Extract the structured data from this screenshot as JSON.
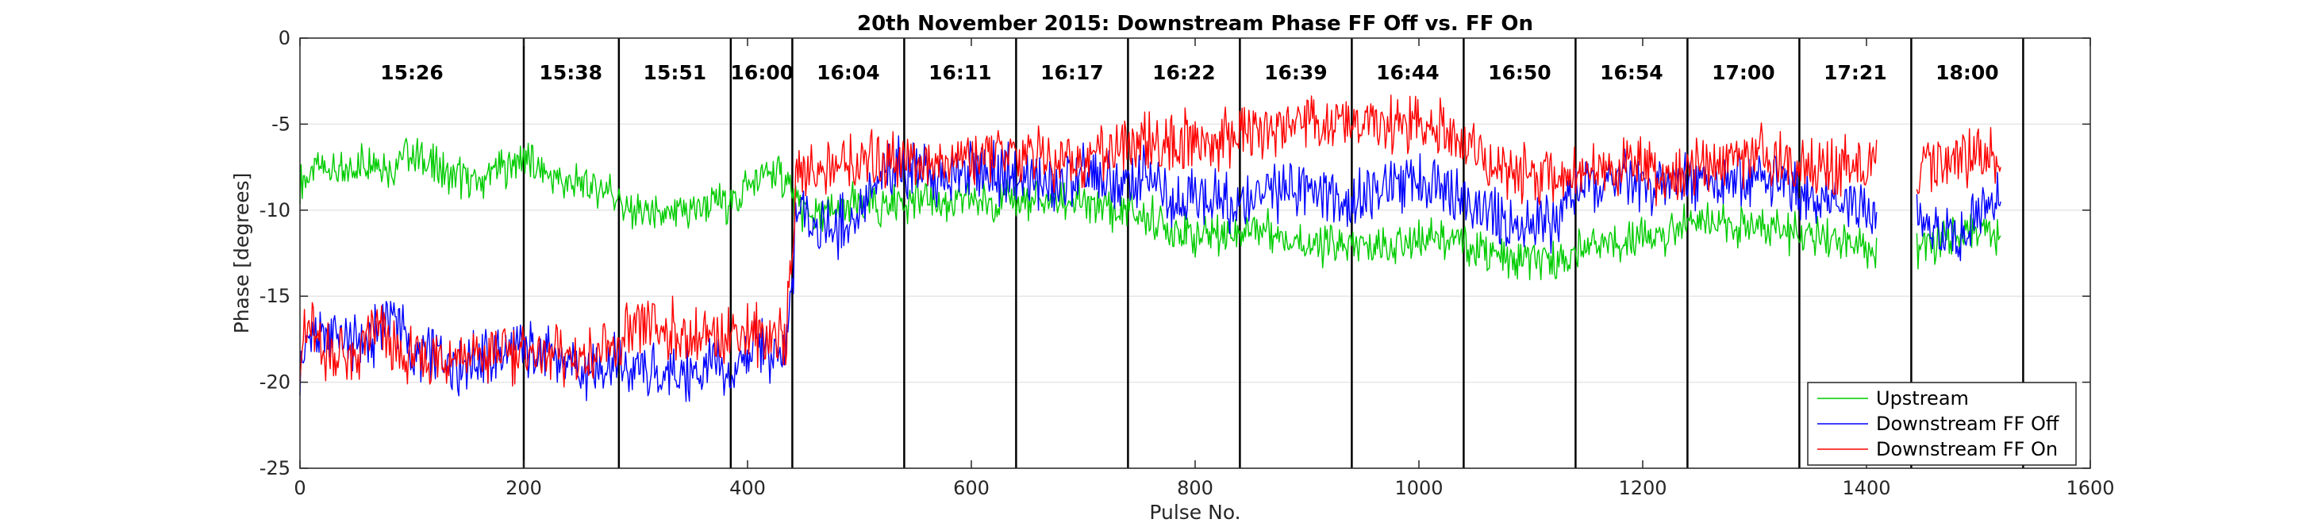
{
  "chart_data": {
    "type": "line",
    "title": "20th November 2015: Downstream Phase FF Off vs. FF On",
    "xlabel": "Pulse No.",
    "ylabel": "Phase [degrees]",
    "xlim": [
      0,
      1600
    ],
    "ylim": [
      -25,
      0
    ],
    "xticks": [
      0,
      200,
      400,
      600,
      800,
      1000,
      1200,
      1400,
      1600
    ],
    "yticks": [
      0,
      -5,
      -10,
      -15,
      -20,
      -25
    ],
    "grid": true,
    "legend_position": "bottom-right",
    "dividers": [
      200,
      285,
      385,
      440,
      540,
      640,
      740,
      840,
      940,
      1040,
      1140,
      1240,
      1340,
      1440,
      1540
    ],
    "segment_labels": [
      {
        "x": 100,
        "label": "15:26"
      },
      {
        "x": 242,
        "label": "15:38"
      },
      {
        "x": 335,
        "label": "15:51"
      },
      {
        "x": 413,
        "label": "16:00"
      },
      {
        "x": 490,
        "label": "16:04"
      },
      {
        "x": 590,
        "label": "16:11"
      },
      {
        "x": 690,
        "label": "16:17"
      },
      {
        "x": 790,
        "label": "16:22"
      },
      {
        "x": 890,
        "label": "16:39"
      },
      {
        "x": 990,
        "label": "16:44"
      },
      {
        "x": 1090,
        "label": "16:50"
      },
      {
        "x": 1190,
        "label": "16:54"
      },
      {
        "x": 1290,
        "label": "17:00"
      },
      {
        "x": 1390,
        "label": "17:21"
      },
      {
        "x": 1490,
        "label": "18:00"
      }
    ],
    "series": [
      {
        "name": "Upstream",
        "color": "#00cc00",
        "x": [
          0,
          20,
          40,
          60,
          80,
          100,
          120,
          140,
          160,
          180,
          200,
          220,
          240,
          260,
          280,
          290,
          310,
          330,
          350,
          370,
          385,
          400,
          420,
          435,
          445,
          460,
          480,
          500,
          520,
          530,
          545,
          560,
          580,
          600,
          620,
          640,
          660,
          680,
          700,
          720,
          740,
          760,
          780,
          800,
          820,
          840,
          860,
          880,
          900,
          920,
          940,
          960,
          980,
          1000,
          1020,
          1040,
          1060,
          1080,
          1100,
          1120,
          1140,
          1160,
          1180,
          1200,
          1220,
          1240,
          1260,
          1280,
          1300,
          1320,
          1340,
          1360,
          1380,
          1390,
          1400,
          1410,
          1445,
          1460,
          1480,
          1500,
          1520
        ],
        "y": [
          -8.5,
          -7.5,
          -8,
          -7,
          -7.5,
          -6.5,
          -7.5,
          -8,
          -8.5,
          -7.5,
          -7,
          -8,
          -8.5,
          -8.5,
          -9,
          -10,
          -10,
          -10.5,
          -10,
          -9.5,
          -9.5,
          -8.5,
          -8,
          -8,
          -10,
          -10.5,
          -10,
          -9.5,
          -10,
          -9.5,
          -9.5,
          -9.5,
          -9.5,
          -9.5,
          -9.5,
          -9.5,
          -9.5,
          -9.5,
          -9.5,
          -10,
          -10,
          -10.5,
          -11,
          -11.5,
          -11.5,
          -11,
          -11,
          -11.5,
          -12,
          -12,
          -12,
          -12,
          -12,
          -11.5,
          -11.5,
          -12,
          -12.5,
          -13,
          -13,
          -13,
          -12.5,
          -12,
          -12,
          -11.5,
          -11.5,
          -10.5,
          -10.5,
          -11,
          -11,
          -11,
          -11.5,
          -11.5,
          -12,
          -12,
          -12.5,
          -12.5,
          -12,
          -12,
          -11.5,
          -11,
          -11.5
        ]
      },
      {
        "name": "Downstream FF Off",
        "color": "#0000ff",
        "x": [
          0,
          10,
          20,
          30,
          40,
          50,
          60,
          70,
          80,
          90,
          100,
          120,
          140,
          160,
          180,
          200,
          220,
          240,
          260,
          280,
          290,
          310,
          330,
          350,
          370,
          385,
          390,
          400,
          410,
          420,
          435,
          445,
          460,
          480,
          500,
          520,
          530,
          545,
          560,
          580,
          600,
          620,
          640,
          660,
          680,
          700,
          720,
          740,
          760,
          780,
          800,
          820,
          840,
          860,
          880,
          900,
          920,
          940,
          960,
          980,
          1000,
          1020,
          1040,
          1060,
          1080,
          1100,
          1120,
          1140,
          1160,
          1180,
          1200,
          1220,
          1240,
          1260,
          1280,
          1300,
          1320,
          1340,
          1360,
          1380,
          1390,
          1400,
          1410,
          1445,
          1460,
          1480,
          1500,
          1520
        ],
        "y": [
          -19.5,
          -17,
          -18,
          -16.5,
          -18,
          -17.5,
          -18,
          -17,
          -16,
          -16.5,
          -18.5,
          -18.5,
          -19,
          -18.5,
          -18.5,
          -18,
          -18.5,
          -19,
          -19,
          -19,
          -19.5,
          -19.5,
          -19.5,
          -19.5,
          -19,
          -20,
          -19,
          -18.5,
          -17.5,
          -18.5,
          -18.5,
          -9.5,
          -10.5,
          -11,
          -10,
          -8,
          -7.5,
          -7.5,
          -8,
          -8.5,
          -7.5,
          -8,
          -8,
          -8.5,
          -8.5,
          -8,
          -8.5,
          -8.5,
          -8,
          -9.5,
          -9,
          -9.5,
          -9.5,
          -9,
          -9,
          -8.5,
          -9,
          -9.5,
          -9,
          -8.5,
          -8.5,
          -8,
          -9.5,
          -10,
          -11,
          -11,
          -10.5,
          -9,
          -8.5,
          -8,
          -8.5,
          -8.5,
          -8,
          -8,
          -8.5,
          -8,
          -8.5,
          -9,
          -9.5,
          -9.5,
          -10,
          -10,
          -10.5,
          -10.5,
          -11.5,
          -11.5,
          -10.5,
          -9.5
        ]
      },
      {
        "name": "Downstream FF On",
        "color": "#ff0000",
        "x": [
          0,
          10,
          20,
          30,
          40,
          50,
          60,
          70,
          80,
          90,
          100,
          120,
          140,
          160,
          180,
          200,
          220,
          240,
          260,
          280,
          290,
          310,
          330,
          350,
          370,
          385,
          400,
          420,
          435,
          445,
          460,
          480,
          500,
          520,
          530,
          545,
          560,
          580,
          600,
          620,
          640,
          660,
          680,
          700,
          720,
          740,
          760,
          780,
          800,
          820,
          840,
          860,
          880,
          900,
          920,
          940,
          960,
          980,
          1000,
          1020,
          1040,
          1060,
          1080,
          1100,
          1120,
          1140,
          1160,
          1180,
          1200,
          1220,
          1240,
          1260,
          1280,
          1300,
          1320,
          1340,
          1360,
          1380,
          1390,
          1400,
          1410,
          1445,
          1460,
          1480,
          1500,
          1520
        ],
        "y": [
          -18,
          -16.5,
          -18.5,
          -18,
          -18.5,
          -18.5,
          -17.5,
          -17,
          -18,
          -18.5,
          -18.5,
          -18.5,
          -18.5,
          -18.5,
          -18.5,
          -18,
          -18.5,
          -18.5,
          -18.5,
          -18.5,
          -17.5,
          -17,
          -17,
          -17.5,
          -17.5,
          -17,
          -17,
          -17.5,
          -17,
          -7.5,
          -7.5,
          -7.5,
          -7.5,
          -7,
          -7,
          -7,
          -7,
          -7,
          -7,
          -7,
          -7,
          -7,
          -7,
          -7,
          -6.5,
          -6.5,
          -6,
          -6,
          -6,
          -6,
          -5.5,
          -5.5,
          -5,
          -5,
          -5,
          -5,
          -5,
          -5,
          -5,
          -5.5,
          -6.5,
          -7,
          -8,
          -8,
          -8,
          -7.5,
          -7.5,
          -7.5,
          -7.5,
          -8,
          -7.5,
          -7,
          -7,
          -7,
          -7,
          -7.5,
          -7.5,
          -7.5,
          -7.5,
          -7.5,
          -7.5,
          -7.5,
          -7,
          -7,
          -7,
          -7.5
        ]
      }
    ]
  }
}
